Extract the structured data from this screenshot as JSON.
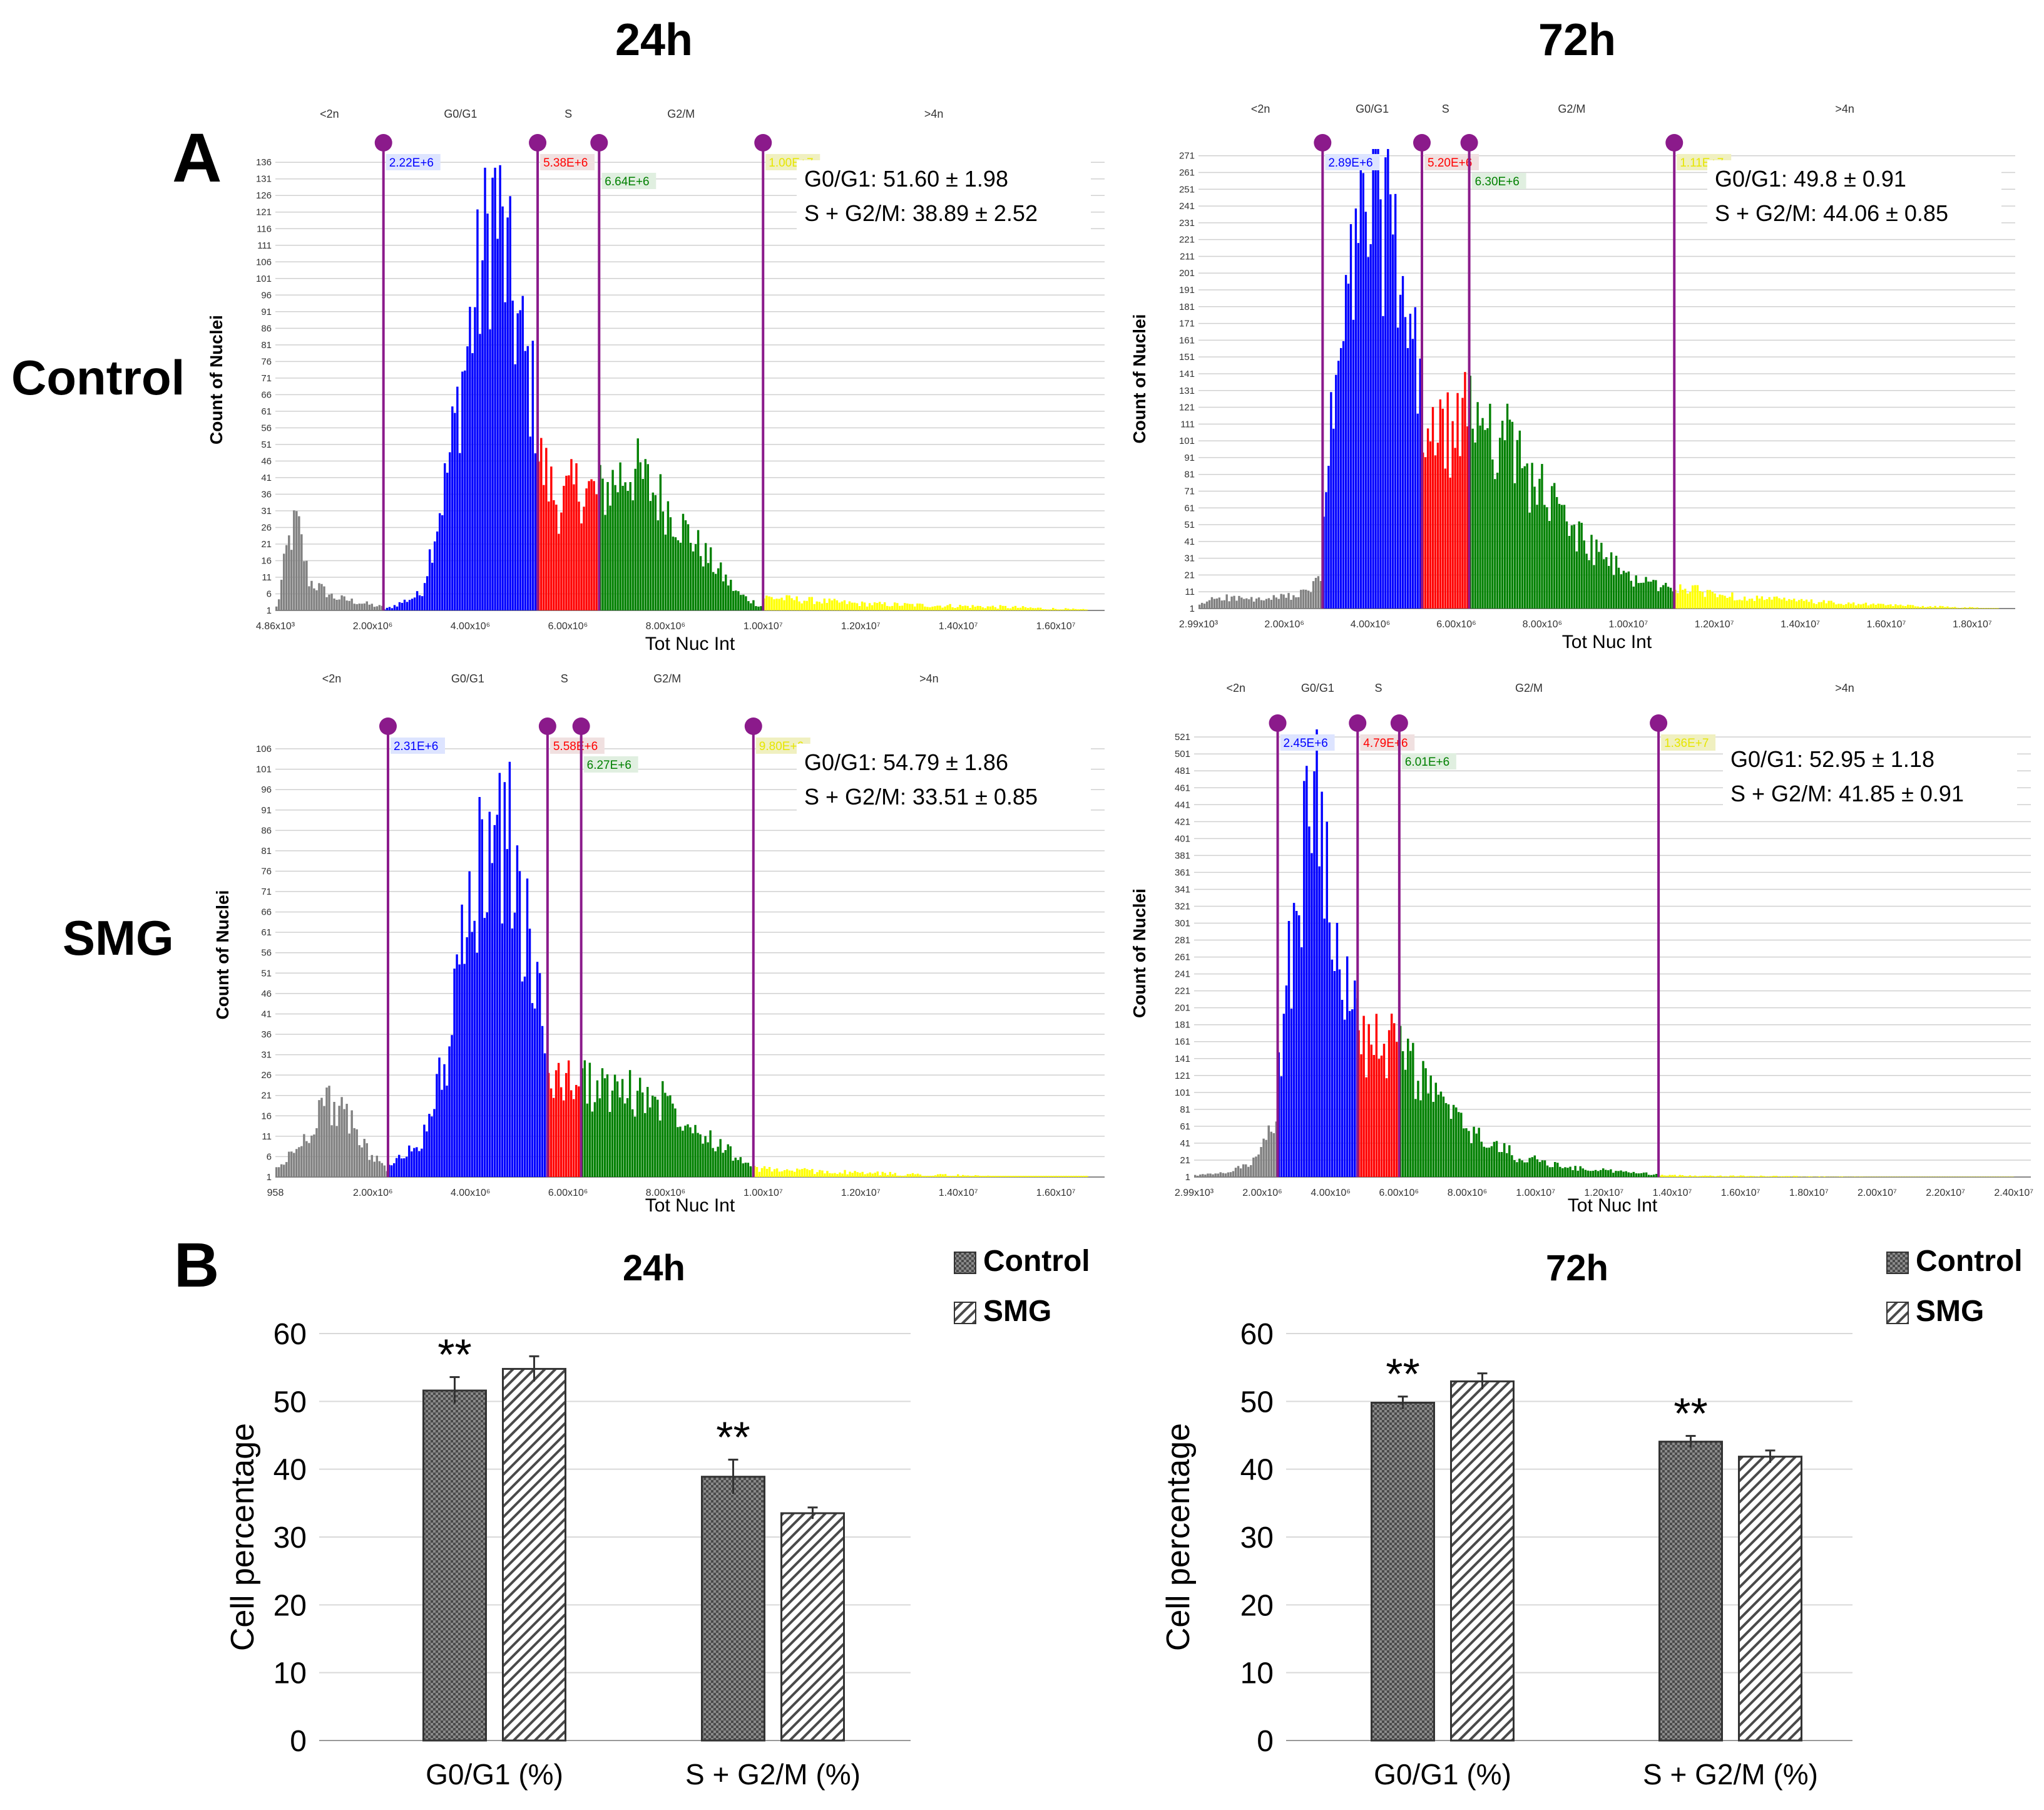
{
  "figure": {
    "column_titles": [
      "24h",
      "72h"
    ],
    "row_labels": [
      "Control",
      "SMG"
    ],
    "panel_a_letter": "A",
    "panel_b_letter": "B"
  },
  "colors": {
    "gate_line": "#8b1a8b",
    "sub2n": "#808080",
    "g0g1": "#0000ff",
    "s": "#ff0000",
    "g2m": "#008000",
    "gt4n": "#ffff00",
    "gridline": "#d0d0d0",
    "bar_control": "#555555",
    "bar_smg": "#ffffff"
  },
  "chart_data": [
    {
      "type": "bar",
      "id": "hist-control-24h",
      "title": "Control 24h",
      "xlabel": "Tot Nuc Int",
      "ylabel": "Count of Nuclei",
      "xlim": [
        4860,
        17000000
      ],
      "ylim": [
        1,
        140
      ],
      "x_tick_labels": [
        "4.86x10³",
        "2.00x10⁶",
        "4.00x10⁶",
        "6.00x10⁶",
        "8.00x10⁶",
        "1.00x10⁷",
        "1.20x10⁷",
        "1.40x10⁷",
        "1.60x10⁷"
      ],
      "x_tick_values": [
        4860,
        2000000,
        4000000,
        6000000,
        8000000,
        10000000,
        12000000,
        14000000,
        16000000
      ],
      "y_tick_labels": [
        "1",
        "6",
        "11",
        "16",
        "21",
        "26",
        "31",
        "36",
        "41",
        "46",
        "51",
        "56",
        "61",
        "66",
        "71",
        "76",
        "81",
        "86",
        "91",
        "96",
        "101",
        "106",
        "111",
        "116",
        "121",
        "126",
        "131",
        "136"
      ],
      "phase_labels": [
        "<2n",
        "G0/G1",
        "S",
        "G2/M",
        ">4n"
      ],
      "gates": [
        {
          "value": 2220000,
          "label": "2.22E+6",
          "color": "#0000ff",
          "bg": "#dde4ff"
        },
        {
          "value": 5380000,
          "label": "5.38E+6",
          "color": "#ff0000",
          "bg": "#f0e0e0"
        },
        {
          "value": 6640000,
          "label": "6.64E+6",
          "color": "#008000",
          "bg": "#e0efe0"
        },
        {
          "value": 10000000,
          "label": "1.00E+7",
          "color": "#e6e600",
          "bg": "#f0f0c0"
        }
      ],
      "stats": [
        "G0/G1: 51.60 ± 1.98",
        "S + G2/M: 38.89 ± 2.52"
      ],
      "profile": {
        "sub2n": [
          [
            50000.0,
            2
          ],
          [
            250000.0,
            20
          ],
          [
            450000.0,
            28
          ],
          [
            700000.0,
            10
          ],
          [
            1200000.0,
            5
          ],
          [
            2200000.0,
            2
          ]
        ],
        "g0g1": [
          [
            2220000.0,
            1
          ],
          [
            3000000.0,
            6
          ],
          [
            3500000.0,
            40
          ],
          [
            4000000.0,
            85
          ],
          [
            4500000.0,
            125
          ],
          [
            4800000.0,
            100
          ],
          [
            5100000.0,
            78
          ],
          [
            5380000.0,
            60
          ]
        ],
        "s": [
          [
            5380000.0,
            48
          ],
          [
            5800000.0,
            33
          ],
          [
            6200000.0,
            38
          ],
          [
            6640000.0,
            36
          ]
        ],
        "g2m": [
          [
            6640000.0,
            36
          ],
          [
            7300000.0,
            44
          ],
          [
            8000000.0,
            33
          ],
          [
            8800000.0,
            18
          ],
          [
            9500000.0,
            6
          ],
          [
            10000000.0,
            2
          ]
        ],
        "gt4n": [
          [
            10000000.0,
            5
          ],
          [
            12000000.0,
            3
          ],
          [
            15000000.0,
            2
          ],
          [
            16800000.0,
            1
          ]
        ]
      }
    },
    {
      "type": "bar",
      "id": "hist-control-72h",
      "title": "Control 72h",
      "xlabel": "Tot Nuc Int",
      "ylabel": "Count of Nuclei",
      "xlim": [
        2990,
        19000000
      ],
      "ylim": [
        1,
        275
      ],
      "x_tick_labels": [
        "2.99x10³",
        "2.00x10⁶",
        "4.00x10⁶",
        "6.00x10⁶",
        "8.00x10⁶",
        "1.00x10⁷",
        "1.20x10⁷",
        "1.40x10⁷",
        "1.60x10⁷",
        "1.80x10⁷"
      ],
      "x_tick_values": [
        2990,
        2000000,
        4000000,
        6000000,
        8000000,
        10000000,
        12000000,
        14000000,
        16000000,
        18000000
      ],
      "y_tick_labels": [
        "1",
        "11",
        "21",
        "31",
        "41",
        "51",
        "61",
        "71",
        "81",
        "91",
        "101",
        "111",
        "121",
        "131",
        "141",
        "151",
        "161",
        "171",
        "181",
        "191",
        "201",
        "211",
        "221",
        "231",
        "241",
        "251",
        "261",
        "271"
      ],
      "phase_labels": [
        "<2n",
        "G0/G1",
        "S",
        "G2/M",
        ">4n"
      ],
      "gates": [
        {
          "value": 2890000,
          "label": "2.89E+6",
          "color": "#0000ff",
          "bg": "#dde4ff"
        },
        {
          "value": 5200000,
          "label": "5.20E+6",
          "color": "#ff0000",
          "bg": "#f0e0e0"
        },
        {
          "value": 6300000,
          "label": "6.30E+6",
          "color": "#008000",
          "bg": "#e0efe0"
        },
        {
          "value": 11070000,
          "label": "1.11E+7",
          "color": "#e6e600",
          "bg": "#f0f0c0"
        }
      ],
      "stats": [
        "G0/G1: 49.8 ± 0.91",
        "S + G2/M: 44.06 ± 0.85"
      ],
      "profile": {
        "sub2n": [
          [
            50000.0,
            3
          ],
          [
            400000.0,
            8
          ],
          [
            1500000.0,
            6
          ],
          [
            2500000.0,
            10
          ],
          [
            2890000.0,
            20
          ]
        ],
        "g0g1": [
          [
            2890000.0,
            60
          ],
          [
            3300000.0,
            150
          ],
          [
            3800000.0,
            235
          ],
          [
            4200000.0,
            255
          ],
          [
            4600000.0,
            200
          ],
          [
            5000000.0,
            150
          ],
          [
            5200000.0,
            125
          ]
        ],
        "s": [
          [
            5200000.0,
            110
          ],
          [
            5700000.0,
            100
          ],
          [
            6300000.0,
            115
          ]
        ],
        "g2m": [
          [
            6300000.0,
            125
          ],
          [
            7000000.0,
            105
          ],
          [
            8000000.0,
            70
          ],
          [
            9000000.0,
            40
          ],
          [
            10000000.0,
            20
          ],
          [
            11070000.0,
            12
          ]
        ],
        "gt4n": [
          [
            11070000.0,
            14
          ],
          [
            12500000.0,
            8
          ],
          [
            15000000.0,
            4
          ],
          [
            18500000.0,
            1
          ]
        ]
      }
    },
    {
      "type": "bar",
      "id": "hist-smg-24h",
      "title": "SMG 24h",
      "xlabel": "Tot Nuc Int",
      "ylabel": "Count of Nuclei",
      "xlim": [
        958,
        17000000
      ],
      "ylim": [
        1,
        110
      ],
      "x_tick_labels": [
        "958",
        "2.00x10⁶",
        "4.00x10⁶",
        "6.00x10⁶",
        "8.00x10⁶",
        "1.00x10⁷",
        "1.20x10⁷",
        "1.40x10⁷",
        "1.60x10⁷"
      ],
      "x_tick_values": [
        958,
        2000000,
        4000000,
        6000000,
        8000000,
        10000000,
        12000000,
        14000000,
        16000000
      ],
      "y_tick_labels": [
        "1",
        "6",
        "11",
        "16",
        "21",
        "26",
        "31",
        "36",
        "41",
        "46",
        "51",
        "56",
        "61",
        "66",
        "71",
        "76",
        "81",
        "86",
        "91",
        "96",
        "101",
        "106"
      ],
      "phase_labels": [
        "<2n",
        "G0/G1",
        "S",
        "G2/M",
        ">4n"
      ],
      "gates": [
        {
          "value": 2310000,
          "label": "2.31E+6",
          "color": "#0000ff",
          "bg": "#dde4ff"
        },
        {
          "value": 5580000,
          "label": "5.58E+6",
          "color": "#ff0000",
          "bg": "#f0e0e0"
        },
        {
          "value": 6270000,
          "label": "6.27E+6",
          "color": "#008000",
          "bg": "#e0efe0"
        },
        {
          "value": 9800000,
          "label": "9.80E+6",
          "color": "#e6e600",
          "bg": "#f0f0c0"
        }
      ],
      "stats": [
        "G0/G1: 54.79 ± 1.86",
        "S + G2/M: 33.51 ± 0.85"
      ],
      "profile": {
        "sub2n": [
          [
            50000.0,
            3
          ],
          [
            600000.0,
            10
          ],
          [
            1000000.0,
            20
          ],
          [
            1500000.0,
            15
          ],
          [
            2000000.0,
            6
          ],
          [
            2310000.0,
            3
          ]
        ],
        "g0g1": [
          [
            2310000.0,
            3
          ],
          [
            3000000.0,
            10
          ],
          [
            3500000.0,
            30
          ],
          [
            4000000.0,
            65
          ],
          [
            4500000.0,
            90
          ],
          [
            4900000.0,
            78
          ],
          [
            5300000.0,
            50
          ],
          [
            5580000.0,
            30
          ]
        ],
        "s": [
          [
            5580000.0,
            27
          ],
          [
            5900000.0,
            24
          ],
          [
            6270000.0,
            26
          ]
        ],
        "g2m": [
          [
            6270000.0,
            24
          ],
          [
            7000000.0,
            22
          ],
          [
            8000000.0,
            20
          ],
          [
            8800000.0,
            12
          ],
          [
            9800000.0,
            3
          ]
        ],
        "gt4n": [
          [
            9800000.0,
            3
          ],
          [
            12000000.0,
            2
          ],
          [
            15000000.0,
            1
          ],
          [
            16500000.0,
            1
          ]
        ]
      }
    },
    {
      "type": "bar",
      "id": "hist-smg-72h",
      "title": "SMG 72h",
      "xlabel": "Tot Nuc Int",
      "ylabel": "Count of Nuclei",
      "xlim": [
        2990,
        24500000
      ],
      "ylim": [
        1,
        530
      ],
      "x_tick_labels": [
        "2.99x10³",
        "2.00x10⁶",
        "4.00x10⁶",
        "6.00x10⁶",
        "8.00x10⁶",
        "1.00x10⁷",
        "1.20x10⁷",
        "1.40x10⁷",
        "1.60x10⁷",
        "1.80x10⁷",
        "2.00x10⁷",
        "2.20x10⁷",
        "2.40x10⁷"
      ],
      "x_tick_values": [
        2990,
        2000000,
        4000000,
        6000000,
        8000000,
        10000000,
        12000000,
        14000000,
        16000000,
        18000000,
        20000000,
        22000000,
        24000000
      ],
      "y_tick_labels": [
        "1",
        "21",
        "41",
        "61",
        "81",
        "101",
        "121",
        "141",
        "161",
        "181",
        "201",
        "221",
        "241",
        "261",
        "281",
        "301",
        "321",
        "341",
        "361",
        "381",
        "401",
        "421",
        "441",
        "461",
        "481",
        "501",
        "521"
      ],
      "phase_labels": [
        "<2n",
        "G0/G1",
        "S",
        "G2/M",
        ">4n"
      ],
      "gates": [
        {
          "value": 2450000,
          "label": "2.45E+6",
          "color": "#0000ff",
          "bg": "#dde4ff"
        },
        {
          "value": 4790000,
          "label": "4.79E+6",
          "color": "#ff0000",
          "bg": "#f0e0e0"
        },
        {
          "value": 6010000,
          "label": "6.01E+6",
          "color": "#008000",
          "bg": "#e0efe0"
        },
        {
          "value": 13600000,
          "label": "1.36E+7",
          "color": "#e6e600",
          "bg": "#f0f0c0"
        }
      ],
      "stats": [
        "G0/G1: 52.95 ± 1.18",
        "S + G2/M: 41.85 ± 0.91"
      ],
      "profile": {
        "sub2n": [
          [
            50000.0,
            3
          ],
          [
            1000000.0,
            6
          ],
          [
            1800000.0,
            20
          ],
          [
            2200000.0,
            50
          ],
          [
            2450000.0,
            80
          ]
        ],
        "g0g1": [
          [
            2450000.0,
            110
          ],
          [
            3000000.0,
            330
          ],
          [
            3500000.0,
            460
          ],
          [
            3800000.0,
            420
          ],
          [
            4200000.0,
            290
          ],
          [
            4600000.0,
            200
          ],
          [
            4790000.0,
            180
          ]
        ],
        "s": [
          [
            4790000.0,
            170
          ],
          [
            5400000.0,
            150
          ],
          [
            6010000.0,
            155
          ]
        ],
        "g2m": [
          [
            6010000.0,
            155
          ],
          [
            7000000.0,
            100
          ],
          [
            8000000.0,
            55
          ],
          [
            9500000.0,
            25
          ],
          [
            11000000.0,
            12
          ],
          [
            13600000.0,
            4
          ]
        ],
        "gt4n": [
          [
            13600000.0,
            3
          ],
          [
            17000000.0,
            2
          ],
          [
            20000000.0,
            1
          ],
          [
            24000000.0,
            1
          ]
        ]
      }
    },
    {
      "type": "bar",
      "id": "bar-24h",
      "title": "24h",
      "xlabel": "",
      "ylabel": "Cell percentage",
      "ylim": [
        0,
        60
      ],
      "y_ticks": [
        0,
        10,
        20,
        30,
        40,
        50,
        60
      ],
      "categories": [
        "G0/G1 (%)",
        "S + G2/M (%)"
      ],
      "series": [
        {
          "name": "Control",
          "values": [
            51.6,
            38.89
          ],
          "errors": [
            1.98,
            2.52
          ]
        },
        {
          "name": "SMG",
          "values": [
            54.79,
            33.51
          ],
          "errors": [
            1.86,
            0.85
          ]
        }
      ],
      "annotations": [
        "**",
        "**"
      ],
      "legend": "top-right"
    },
    {
      "type": "bar",
      "id": "bar-72h",
      "title": "72h",
      "xlabel": "",
      "ylabel": "Cell percentage",
      "ylim": [
        0,
        60
      ],
      "y_ticks": [
        0,
        10,
        20,
        30,
        40,
        50,
        60
      ],
      "categories": [
        "G0/G1 (%)",
        "S + G2/M (%)"
      ],
      "series": [
        {
          "name": "Control",
          "values": [
            49.8,
            44.06
          ],
          "errors": [
            0.91,
            0.85
          ]
        },
        {
          "name": "SMG",
          "values": [
            52.95,
            41.85
          ],
          "errors": [
            1.18,
            0.91
          ]
        }
      ],
      "annotations": [
        "**",
        "**"
      ],
      "legend": "top-right"
    }
  ]
}
